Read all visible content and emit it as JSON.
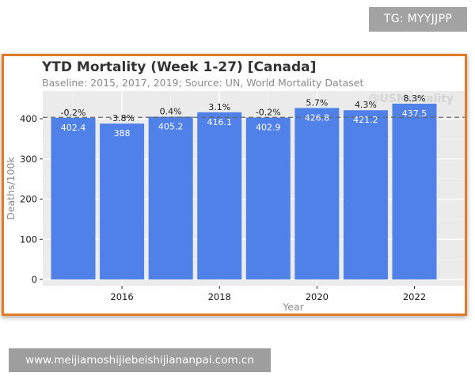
{
  "badge": {
    "text": "TG: MYYJJPP"
  },
  "footer": {
    "text": "www.meijiamoshijiebeishijiananpai.com.cn"
  },
  "colors": {
    "frame_border": "#e27b27",
    "bar": "#4f81e8",
    "plot_bg": "#ebebeb",
    "baseline_line": "#666666"
  },
  "chart_data": {
    "type": "bar",
    "title": "YTD Mortality (Week 1-27) [Canada]",
    "subtitle": "Baseline: 2015, 2017, 2019; Source: UN, World Mortality Dataset",
    "watermark": "@USMortality",
    "xlabel": "Year",
    "ylabel": "Deaths/100k",
    "x": [
      2015,
      2016,
      2017,
      2018,
      2019,
      2020,
      2021,
      2022
    ],
    "values": [
      402.4,
      388,
      405.2,
      416.1,
      402.9,
      426.8,
      421.2,
      437.5
    ],
    "value_labels": [
      "402.4",
      "388",
      "405.2",
      "416.1",
      "402.9",
      "426.8",
      "421.2",
      "437.5"
    ],
    "pct_labels": [
      "-0.2%",
      "-3.8%",
      "0.4%",
      "3.1%",
      "-0.2%",
      "5.7%",
      "4.3%",
      "8.3%"
    ],
    "baseline": 403.5,
    "ylim": [
      0,
      440
    ],
    "yticks": [
      0,
      100,
      200,
      300,
      400
    ],
    "ytick_labels": [
      "0",
      "100",
      "200",
      "300",
      "400"
    ],
    "xticks": [
      2016,
      2018,
      2020,
      2022
    ],
    "xtick_labels": [
      "2016",
      "2018",
      "2020",
      "2022"
    ],
    "grid": true
  }
}
